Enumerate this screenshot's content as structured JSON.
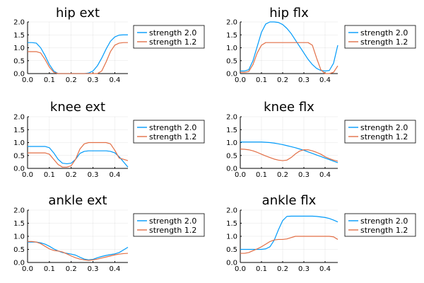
{
  "chart_data": [
    {
      "type": "line",
      "title": "hip ext",
      "xlabel": "",
      "ylabel": "",
      "xlim": [
        0.0,
        0.46
      ],
      "ylim": [
        0.0,
        2.0
      ],
      "xticks": [
        "0.0",
        "0.1",
        "0.2",
        "0.3",
        "0.4"
      ],
      "yticks": [
        "0.0",
        "0.5",
        "1.0",
        "1.5",
        "2.0"
      ],
      "grid": true,
      "legend_position": "right",
      "series": [
        {
          "name": "strength 2.0",
          "color": "#009AFA",
          "x": [
            0.0,
            0.02,
            0.04,
            0.06,
            0.08,
            0.1,
            0.12,
            0.14,
            0.16,
            0.18,
            0.2,
            0.22,
            0.24,
            0.26,
            0.28,
            0.3,
            0.32,
            0.34,
            0.36,
            0.38,
            0.4,
            0.42,
            0.44,
            0.46
          ],
          "y": [
            1.2,
            1.2,
            1.18,
            1.0,
            0.7,
            0.35,
            0.1,
            0.0,
            0.0,
            0.0,
            0.0,
            0.0,
            0.0,
            0.0,
            0.02,
            0.1,
            0.3,
            0.6,
            0.95,
            1.25,
            1.42,
            1.49,
            1.5,
            1.5
          ]
        },
        {
          "name": "strength 1.2",
          "color": "#E26F46",
          "x": [
            0.0,
            0.02,
            0.04,
            0.06,
            0.08,
            0.1,
            0.12,
            0.14,
            0.16,
            0.18,
            0.2,
            0.22,
            0.24,
            0.26,
            0.28,
            0.3,
            0.32,
            0.34,
            0.36,
            0.38,
            0.4,
            0.42,
            0.44,
            0.46
          ],
          "y": [
            0.85,
            0.85,
            0.85,
            0.8,
            0.55,
            0.25,
            0.05,
            0.0,
            0.0,
            0.0,
            0.0,
            0.0,
            0.0,
            0.0,
            0.0,
            0.0,
            0.0,
            0.1,
            0.45,
            0.85,
            1.1,
            1.18,
            1.2,
            1.2
          ]
        }
      ]
    },
    {
      "type": "line",
      "title": "hip flx",
      "xlabel": "",
      "ylabel": "",
      "xlim": [
        0.0,
        0.46
      ],
      "ylim": [
        0.0,
        2.0
      ],
      "xticks": [
        "0.0",
        "0.1",
        "0.2",
        "0.3",
        "0.4"
      ],
      "yticks": [
        "0.0",
        "0.5",
        "1.0",
        "1.5",
        "2.0"
      ],
      "grid": true,
      "legend_position": "right",
      "series": [
        {
          "name": "strength 2.0",
          "color": "#009AFA",
          "x": [
            0.0,
            0.02,
            0.04,
            0.06,
            0.08,
            0.1,
            0.12,
            0.14,
            0.16,
            0.18,
            0.2,
            0.22,
            0.24,
            0.26,
            0.28,
            0.3,
            0.32,
            0.34,
            0.36,
            0.38,
            0.4,
            0.42,
            0.44,
            0.46
          ],
          "y": [
            0.1,
            0.1,
            0.15,
            0.5,
            1.05,
            1.6,
            1.92,
            2.0,
            2.0,
            1.98,
            1.9,
            1.75,
            1.55,
            1.3,
            1.05,
            0.8,
            0.55,
            0.35,
            0.2,
            0.12,
            0.1,
            0.12,
            0.4,
            1.1
          ]
        },
        {
          "name": "strength 1.2",
          "color": "#E26F46",
          "x": [
            0.0,
            0.02,
            0.04,
            0.06,
            0.08,
            0.1,
            0.12,
            0.14,
            0.16,
            0.18,
            0.2,
            0.22,
            0.24,
            0.26,
            0.28,
            0.3,
            0.32,
            0.34,
            0.36,
            0.38,
            0.4,
            0.42,
            0.44,
            0.46
          ],
          "y": [
            0.05,
            0.05,
            0.08,
            0.35,
            0.8,
            1.1,
            1.2,
            1.2,
            1.2,
            1.2,
            1.2,
            1.2,
            1.2,
            1.2,
            1.2,
            1.2,
            1.2,
            1.1,
            0.6,
            0.15,
            0.0,
            0.0,
            0.05,
            0.3
          ]
        }
      ]
    },
    {
      "type": "line",
      "title": "knee ext",
      "xlabel": "",
      "ylabel": "",
      "xlim": [
        0.0,
        0.46
      ],
      "ylim": [
        0.0,
        2.0
      ],
      "xticks": [
        "0.0",
        "0.1",
        "0.2",
        "0.3",
        "0.4"
      ],
      "yticks": [
        "0.0",
        "0.5",
        "1.0",
        "1.5",
        "2.0"
      ],
      "grid": true,
      "legend_position": "right",
      "series": [
        {
          "name": "strength 2.0",
          "color": "#009AFA",
          "x": [
            0.0,
            0.02,
            0.04,
            0.06,
            0.08,
            0.1,
            0.12,
            0.14,
            0.16,
            0.18,
            0.2,
            0.22,
            0.24,
            0.26,
            0.28,
            0.3,
            0.32,
            0.34,
            0.36,
            0.38,
            0.4,
            0.42,
            0.44,
            0.46
          ],
          "y": [
            0.85,
            0.85,
            0.85,
            0.85,
            0.85,
            0.8,
            0.6,
            0.35,
            0.2,
            0.18,
            0.2,
            0.35,
            0.58,
            0.66,
            0.68,
            0.68,
            0.68,
            0.68,
            0.68,
            0.66,
            0.6,
            0.45,
            0.25,
            0.05
          ]
        },
        {
          "name": "strength 1.2",
          "color": "#E26F46",
          "x": [
            0.0,
            0.02,
            0.04,
            0.06,
            0.08,
            0.1,
            0.12,
            0.14,
            0.16,
            0.18,
            0.2,
            0.22,
            0.24,
            0.26,
            0.28,
            0.3,
            0.32,
            0.34,
            0.36,
            0.38,
            0.4,
            0.42,
            0.44,
            0.46
          ],
          "y": [
            0.6,
            0.6,
            0.6,
            0.6,
            0.6,
            0.55,
            0.35,
            0.15,
            0.05,
            0.05,
            0.1,
            0.35,
            0.75,
            0.95,
            1.0,
            1.0,
            1.0,
            1.0,
            1.0,
            0.95,
            0.7,
            0.4,
            0.35,
            0.3
          ]
        }
      ]
    },
    {
      "type": "line",
      "title": "knee flx",
      "xlabel": "",
      "ylabel": "",
      "xlim": [
        0.0,
        0.46
      ],
      "ylim": [
        0.0,
        2.0
      ],
      "xticks": [
        "0.0",
        "0.1",
        "0.2",
        "0.3",
        "0.4"
      ],
      "yticks": [
        "0.0",
        "0.5",
        "1.0",
        "1.5",
        "2.0"
      ],
      "grid": true,
      "legend_position": "right",
      "series": [
        {
          "name": "strength 2.0",
          "color": "#009AFA",
          "x": [
            0.0,
            0.02,
            0.04,
            0.06,
            0.08,
            0.1,
            0.12,
            0.14,
            0.16,
            0.18,
            0.2,
            0.22,
            0.24,
            0.26,
            0.28,
            0.3,
            0.32,
            0.34,
            0.36,
            0.38,
            0.4,
            0.42,
            0.44,
            0.46
          ],
          "y": [
            1.02,
            1.02,
            1.02,
            1.02,
            1.02,
            1.02,
            1.01,
            1.0,
            0.98,
            0.95,
            0.92,
            0.88,
            0.84,
            0.8,
            0.75,
            0.7,
            0.64,
            0.58,
            0.52,
            0.46,
            0.4,
            0.34,
            0.28,
            0.22
          ]
        },
        {
          "name": "strength 1.2",
          "color": "#E26F46",
          "x": [
            0.0,
            0.02,
            0.04,
            0.06,
            0.08,
            0.1,
            0.12,
            0.14,
            0.16,
            0.18,
            0.2,
            0.22,
            0.24,
            0.26,
            0.28,
            0.3,
            0.32,
            0.34,
            0.36,
            0.38,
            0.4,
            0.42,
            0.44,
            0.46
          ],
          "y": [
            0.75,
            0.74,
            0.72,
            0.68,
            0.62,
            0.55,
            0.48,
            0.42,
            0.36,
            0.32,
            0.3,
            0.32,
            0.42,
            0.56,
            0.67,
            0.72,
            0.72,
            0.68,
            0.62,
            0.55,
            0.45,
            0.38,
            0.32,
            0.28
          ]
        }
      ]
    },
    {
      "type": "line",
      "title": "ankle ext",
      "xlabel": "",
      "ylabel": "",
      "xlim": [
        0.0,
        0.46
      ],
      "ylim": [
        0.0,
        2.0
      ],
      "xticks": [
        "0.0",
        "0.1",
        "0.2",
        "0.3",
        "0.4"
      ],
      "yticks": [
        "0.0",
        "0.5",
        "1.0",
        "1.5",
        "2.0"
      ],
      "grid": true,
      "legend_position": "right",
      "series": [
        {
          "name": "strength 2.0",
          "color": "#009AFA",
          "x": [
            0.0,
            0.02,
            0.04,
            0.06,
            0.08,
            0.1,
            0.12,
            0.14,
            0.16,
            0.18,
            0.2,
            0.22,
            0.24,
            0.26,
            0.28,
            0.3,
            0.32,
            0.34,
            0.36,
            0.38,
            0.4,
            0.42,
            0.44,
            0.46
          ],
          "y": [
            0.78,
            0.78,
            0.78,
            0.75,
            0.7,
            0.62,
            0.52,
            0.44,
            0.38,
            0.35,
            0.32,
            0.28,
            0.2,
            0.13,
            0.1,
            0.12,
            0.18,
            0.23,
            0.27,
            0.3,
            0.33,
            0.38,
            0.48,
            0.58
          ]
        },
        {
          "name": "strength 1.2",
          "color": "#E26F46",
          "x": [
            0.0,
            0.02,
            0.04,
            0.06,
            0.08,
            0.1,
            0.12,
            0.14,
            0.16,
            0.18,
            0.2,
            0.22,
            0.24,
            0.26,
            0.28,
            0.3,
            0.32,
            0.34,
            0.36,
            0.38,
            0.4,
            0.42,
            0.44,
            0.46
          ],
          "y": [
            0.8,
            0.8,
            0.78,
            0.72,
            0.62,
            0.52,
            0.46,
            0.44,
            0.4,
            0.33,
            0.25,
            0.18,
            0.13,
            0.1,
            0.08,
            0.1,
            0.13,
            0.17,
            0.21,
            0.25,
            0.29,
            0.32,
            0.34,
            0.35
          ]
        }
      ]
    },
    {
      "type": "line",
      "title": "ankle flx",
      "xlabel": "",
      "ylabel": "",
      "xlim": [
        0.0,
        0.46
      ],
      "ylim": [
        0.0,
        2.0
      ],
      "xticks": [
        "0.0",
        "0.1",
        "0.2",
        "0.3",
        "0.4"
      ],
      "yticks": [
        "0.0",
        "0.5",
        "1.0",
        "1.5",
        "2.0"
      ],
      "grid": true,
      "legend_position": "right",
      "series": [
        {
          "name": "strength 2.0",
          "color": "#009AFA",
          "x": [
            0.0,
            0.02,
            0.04,
            0.06,
            0.08,
            0.1,
            0.12,
            0.14,
            0.16,
            0.18,
            0.2,
            0.22,
            0.24,
            0.26,
            0.28,
            0.3,
            0.32,
            0.34,
            0.36,
            0.38,
            0.4,
            0.42,
            0.44,
            0.46
          ],
          "y": [
            0.5,
            0.5,
            0.5,
            0.5,
            0.5,
            0.5,
            0.52,
            0.6,
            0.85,
            1.25,
            1.6,
            1.76,
            1.77,
            1.77,
            1.77,
            1.77,
            1.77,
            1.77,
            1.76,
            1.74,
            1.72,
            1.68,
            1.62,
            1.55
          ]
        },
        {
          "name": "strength 1.2",
          "color": "#E26F46",
          "x": [
            0.0,
            0.02,
            0.04,
            0.06,
            0.08,
            0.1,
            0.12,
            0.14,
            0.16,
            0.18,
            0.2,
            0.22,
            0.24,
            0.26,
            0.28,
            0.3,
            0.32,
            0.34,
            0.36,
            0.38,
            0.4,
            0.42,
            0.44,
            0.46
          ],
          "y": [
            0.35,
            0.35,
            0.38,
            0.45,
            0.52,
            0.6,
            0.7,
            0.8,
            0.86,
            0.88,
            0.88,
            0.9,
            0.95,
            1.0,
            1.0,
            1.0,
            1.0,
            1.0,
            1.0,
            1.0,
            1.0,
            1.0,
            0.98,
            0.88
          ]
        }
      ]
    }
  ]
}
